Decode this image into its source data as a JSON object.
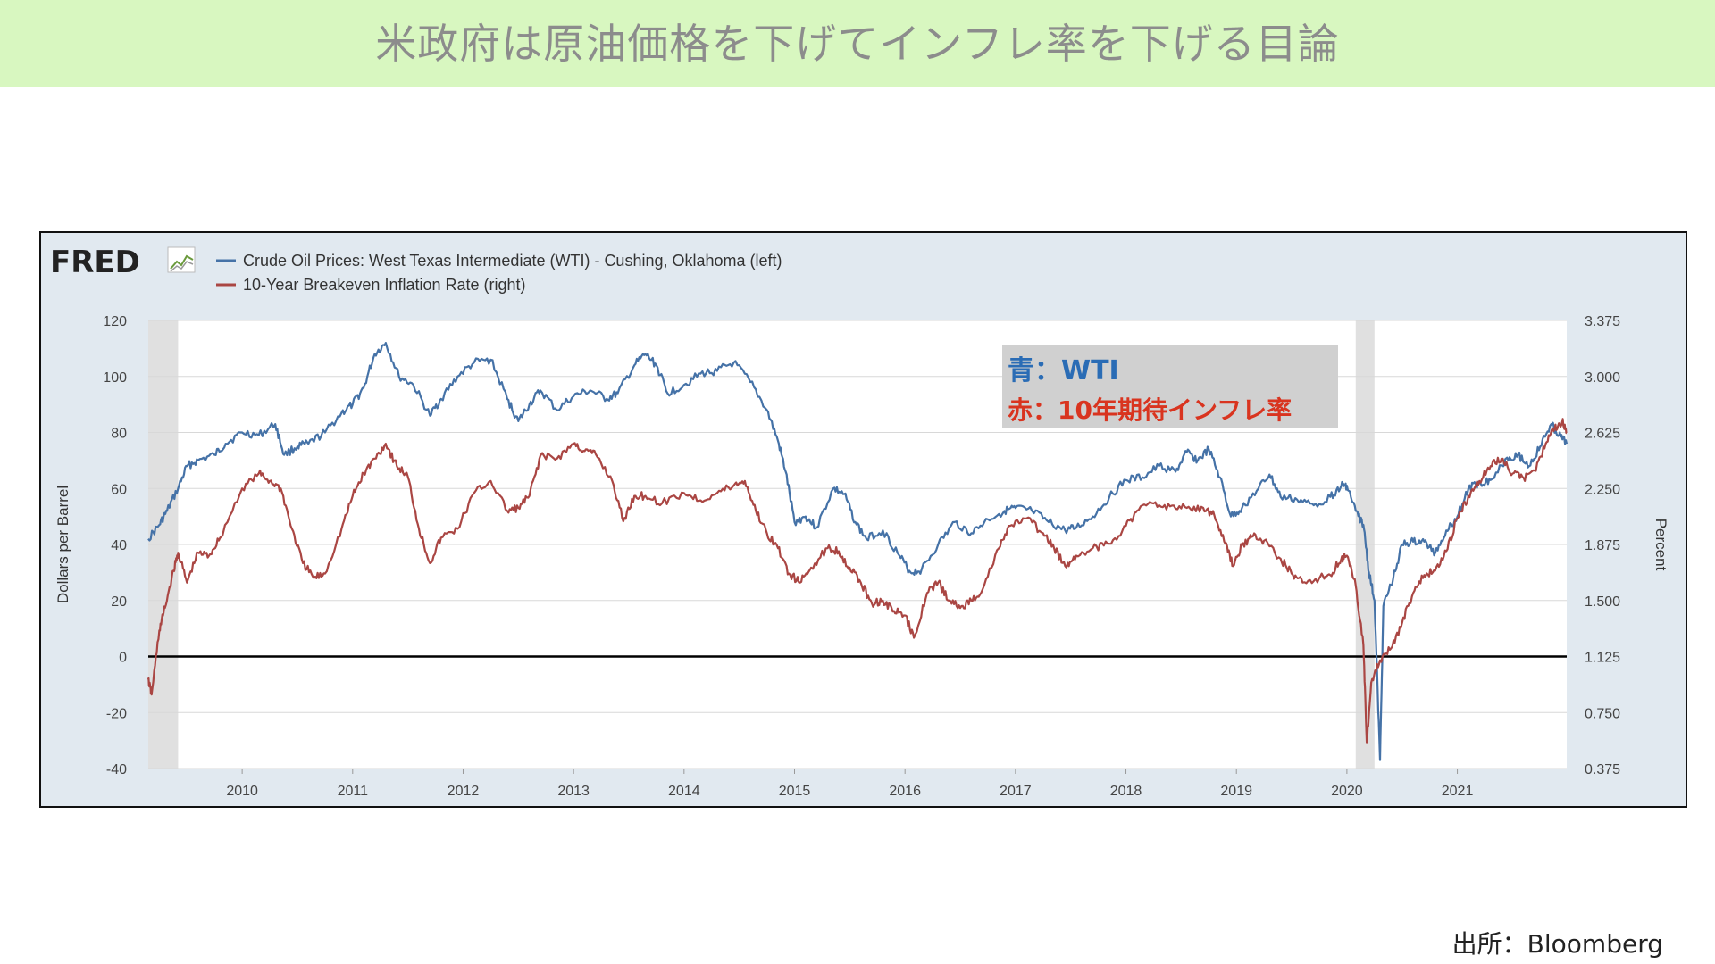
{
  "header": {
    "title": "米政府は原油価格を下げてインフレ率を下げる目論"
  },
  "footer": {
    "source": "出所：Bloomberg"
  },
  "chart_data": {
    "type": "line",
    "brand": "FRED",
    "legend": [
      {
        "label": "Crude Oil Prices: West Texas Intermediate (WTI) - Cushing, Oklahoma (left)",
        "color": "#4572a7"
      },
      {
        "label": "10-Year Breakeven Inflation Rate (right)",
        "color": "#aa4643"
      }
    ],
    "ylabel_left": "Dollars per Barrel",
    "ylabel_right": "Percent",
    "yticks_left": [
      "120",
      "100",
      "80",
      "60",
      "40",
      "20",
      "0",
      "-20",
      "-40"
    ],
    "yticks_right": [
      "3.375",
      "3.000",
      "2.625",
      "2.250",
      "1.875",
      "1.500",
      "1.125",
      "0.750",
      "0.375"
    ],
    "ylim_left": [
      -40,
      120
    ],
    "ylim_right": [
      0.375,
      3.375
    ],
    "xlim": [
      2009.15,
      2021.99
    ],
    "xticks": [
      "2010",
      "2011",
      "2012",
      "2013",
      "2014",
      "2015",
      "2016",
      "2017",
      "2018",
      "2019",
      "2020",
      "2021"
    ],
    "recessions": [
      [
        2009.15,
        2009.42
      ],
      [
        2020.08,
        2020.25
      ]
    ],
    "annotation": {
      "line1": "青：WTI",
      "line2": "赤：10年期待インフレ率",
      "color1": "#2a6cb5",
      "color2": "#d9341f"
    },
    "series": [
      {
        "name": "Crude Oil Prices: West Texas Intermediate (WTI) - Cushing, Oklahoma (left)",
        "color": "#4572a7",
        "points": [
          [
            2009.15,
            42
          ],
          [
            2009.25,
            47
          ],
          [
            2009.32,
            52
          ],
          [
            2009.42,
            60
          ],
          [
            2009.5,
            68
          ],
          [
            2009.6,
            70
          ],
          [
            2009.75,
            72
          ],
          [
            2009.85,
            76
          ],
          [
            2010.0,
            80
          ],
          [
            2010.15,
            79
          ],
          [
            2010.3,
            83
          ],
          [
            2010.38,
            72
          ],
          [
            2010.5,
            75
          ],
          [
            2010.6,
            76
          ],
          [
            2010.75,
            80
          ],
          [
            2010.9,
            87
          ],
          [
            2011.0,
            90
          ],
          [
            2011.1,
            96
          ],
          [
            2011.2,
            108
          ],
          [
            2011.3,
            112
          ],
          [
            2011.42,
            100
          ],
          [
            2011.55,
            97
          ],
          [
            2011.7,
            86
          ],
          [
            2011.8,
            92
          ],
          [
            2011.95,
            100
          ],
          [
            2012.1,
            105
          ],
          [
            2012.25,
            106
          ],
          [
            2012.4,
            92
          ],
          [
            2012.5,
            84
          ],
          [
            2012.6,
            90
          ],
          [
            2012.7,
            95
          ],
          [
            2012.85,
            88
          ],
          [
            2013.0,
            93
          ],
          [
            2013.15,
            95
          ],
          [
            2013.3,
            92
          ],
          [
            2013.4,
            94
          ],
          [
            2013.55,
            104
          ],
          [
            2013.65,
            108
          ],
          [
            2013.75,
            104
          ],
          [
            2013.85,
            94
          ],
          [
            2014.0,
            97
          ],
          [
            2014.15,
            101
          ],
          [
            2014.3,
            102
          ],
          [
            2014.45,
            105
          ],
          [
            2014.6,
            98
          ],
          [
            2014.75,
            88
          ],
          [
            2014.85,
            77
          ],
          [
            2014.92,
            66
          ],
          [
            2015.0,
            48
          ],
          [
            2015.1,
            50
          ],
          [
            2015.2,
            46
          ],
          [
            2015.35,
            60
          ],
          [
            2015.45,
            58
          ],
          [
            2015.55,
            48
          ],
          [
            2015.65,
            42
          ],
          [
            2015.8,
            45
          ],
          [
            2015.95,
            36
          ],
          [
            2016.05,
            30
          ],
          [
            2016.15,
            31
          ],
          [
            2016.3,
            40
          ],
          [
            2016.45,
            48
          ],
          [
            2016.6,
            44
          ],
          [
            2016.75,
            49
          ],
          [
            2016.9,
            52
          ],
          [
            2017.0,
            53
          ],
          [
            2017.15,
            52
          ],
          [
            2017.3,
            48
          ],
          [
            2017.45,
            45
          ],
          [
            2017.55,
            46
          ],
          [
            2017.7,
            50
          ],
          [
            2017.85,
            57
          ],
          [
            2018.0,
            63
          ],
          [
            2018.15,
            64
          ],
          [
            2018.3,
            68
          ],
          [
            2018.45,
            66
          ],
          [
            2018.55,
            73
          ],
          [
            2018.65,
            70
          ],
          [
            2018.75,
            74
          ],
          [
            2018.85,
            64
          ],
          [
            2018.95,
            50
          ],
          [
            2019.05,
            53
          ],
          [
            2019.2,
            60
          ],
          [
            2019.3,
            65
          ],
          [
            2019.4,
            57
          ],
          [
            2019.55,
            56
          ],
          [
            2019.7,
            54
          ],
          [
            2019.85,
            57
          ],
          [
            2019.95,
            61
          ],
          [
            2020.0,
            61
          ],
          [
            2020.08,
            52
          ],
          [
            2020.15,
            47
          ],
          [
            2020.2,
            30
          ],
          [
            2020.25,
            20
          ],
          [
            2020.3,
            -37
          ],
          [
            2020.33,
            18
          ],
          [
            2020.42,
            28
          ],
          [
            2020.5,
            40
          ],
          [
            2020.6,
            41
          ],
          [
            2020.7,
            41
          ],
          [
            2020.8,
            37
          ],
          [
            2020.9,
            45
          ],
          [
            2021.0,
            50
          ],
          [
            2021.1,
            60
          ],
          [
            2021.2,
            62
          ],
          [
            2021.3,
            63
          ],
          [
            2021.45,
            71
          ],
          [
            2021.55,
            72
          ],
          [
            2021.65,
            68
          ],
          [
            2021.75,
            75
          ],
          [
            2021.85,
            83
          ],
          [
            2021.92,
            79
          ],
          [
            2021.99,
            76
          ]
        ]
      },
      {
        "name": "10-Year Breakeven Inflation Rate (right)",
        "color": "#aa4643",
        "points": [
          [
            2009.15,
            0.97
          ],
          [
            2009.18,
            0.87
          ],
          [
            2009.25,
            1.3
          ],
          [
            2009.3,
            1.45
          ],
          [
            2009.38,
            1.7
          ],
          [
            2009.42,
            1.82
          ],
          [
            2009.5,
            1.62
          ],
          [
            2009.6,
            1.82
          ],
          [
            2009.7,
            1.8
          ],
          [
            2009.8,
            1.92
          ],
          [
            2010.0,
            2.25
          ],
          [
            2010.15,
            2.35
          ],
          [
            2010.25,
            2.3
          ],
          [
            2010.35,
            2.25
          ],
          [
            2010.45,
            1.98
          ],
          [
            2010.55,
            1.75
          ],
          [
            2010.65,
            1.65
          ],
          [
            2010.75,
            1.68
          ],
          [
            2010.9,
            1.98
          ],
          [
            2011.0,
            2.2
          ],
          [
            2011.1,
            2.35
          ],
          [
            2011.2,
            2.45
          ],
          [
            2011.3,
            2.55
          ],
          [
            2011.4,
            2.4
          ],
          [
            2011.5,
            2.33
          ],
          [
            2011.6,
            1.98
          ],
          [
            2011.7,
            1.75
          ],
          [
            2011.8,
            1.92
          ],
          [
            2011.95,
            1.98
          ],
          [
            2012.1,
            2.22
          ],
          [
            2012.25,
            2.3
          ],
          [
            2012.4,
            2.1
          ],
          [
            2012.5,
            2.12
          ],
          [
            2012.6,
            2.2
          ],
          [
            2012.7,
            2.47
          ],
          [
            2012.85,
            2.45
          ],
          [
            2013.0,
            2.55
          ],
          [
            2013.1,
            2.5
          ],
          [
            2013.2,
            2.48
          ],
          [
            2013.35,
            2.3
          ],
          [
            2013.45,
            2.03
          ],
          [
            2013.55,
            2.2
          ],
          [
            2013.65,
            2.2
          ],
          [
            2013.8,
            2.15
          ],
          [
            2014.0,
            2.22
          ],
          [
            2014.15,
            2.17
          ],
          [
            2014.3,
            2.22
          ],
          [
            2014.45,
            2.27
          ],
          [
            2014.55,
            2.3
          ],
          [
            2014.65,
            2.1
          ],
          [
            2014.75,
            1.95
          ],
          [
            2014.85,
            1.85
          ],
          [
            2014.95,
            1.68
          ],
          [
            2015.05,
            1.62
          ],
          [
            2015.15,
            1.72
          ],
          [
            2015.3,
            1.85
          ],
          [
            2015.4,
            1.83
          ],
          [
            2015.5,
            1.72
          ],
          [
            2015.6,
            1.62
          ],
          [
            2015.7,
            1.48
          ],
          [
            2015.8,
            1.5
          ],
          [
            2015.9,
            1.43
          ],
          [
            2016.0,
            1.4
          ],
          [
            2016.08,
            1.25
          ],
          [
            2016.2,
            1.55
          ],
          [
            2016.3,
            1.62
          ],
          [
            2016.4,
            1.5
          ],
          [
            2016.5,
            1.45
          ],
          [
            2016.6,
            1.5
          ],
          [
            2016.7,
            1.57
          ],
          [
            2016.85,
            1.85
          ],
          [
            2016.95,
            2.0
          ],
          [
            2017.1,
            2.05
          ],
          [
            2017.25,
            1.95
          ],
          [
            2017.35,
            1.85
          ],
          [
            2017.45,
            1.73
          ],
          [
            2017.55,
            1.8
          ],
          [
            2017.7,
            1.85
          ],
          [
            2017.85,
            1.88
          ],
          [
            2018.0,
            2.0
          ],
          [
            2018.1,
            2.1
          ],
          [
            2018.25,
            2.15
          ],
          [
            2018.4,
            2.13
          ],
          [
            2018.55,
            2.12
          ],
          [
            2018.7,
            2.12
          ],
          [
            2018.8,
            2.07
          ],
          [
            2018.9,
            1.88
          ],
          [
            2018.97,
            1.73
          ],
          [
            2019.05,
            1.87
          ],
          [
            2019.15,
            1.93
          ],
          [
            2019.25,
            1.9
          ],
          [
            2019.4,
            1.78
          ],
          [
            2019.5,
            1.68
          ],
          [
            2019.6,
            1.62
          ],
          [
            2019.75,
            1.65
          ],
          [
            2019.85,
            1.67
          ],
          [
            2019.95,
            1.78
          ],
          [
            2020.0,
            1.8
          ],
          [
            2020.08,
            1.6
          ],
          [
            2020.15,
            1.2
          ],
          [
            2020.18,
            0.55
          ],
          [
            2020.22,
            0.95
          ],
          [
            2020.3,
            1.1
          ],
          [
            2020.4,
            1.18
          ],
          [
            2020.5,
            1.35
          ],
          [
            2020.6,
            1.55
          ],
          [
            2020.7,
            1.67
          ],
          [
            2020.8,
            1.7
          ],
          [
            2020.9,
            1.83
          ],
          [
            2021.0,
            2.05
          ],
          [
            2021.1,
            2.2
          ],
          [
            2021.2,
            2.3
          ],
          [
            2021.3,
            2.4
          ],
          [
            2021.4,
            2.45
          ],
          [
            2021.5,
            2.35
          ],
          [
            2021.6,
            2.32
          ],
          [
            2021.7,
            2.37
          ],
          [
            2021.8,
            2.55
          ],
          [
            2021.88,
            2.65
          ],
          [
            2021.95,
            2.7
          ],
          [
            2021.99,
            2.62
          ]
        ]
      }
    ]
  }
}
